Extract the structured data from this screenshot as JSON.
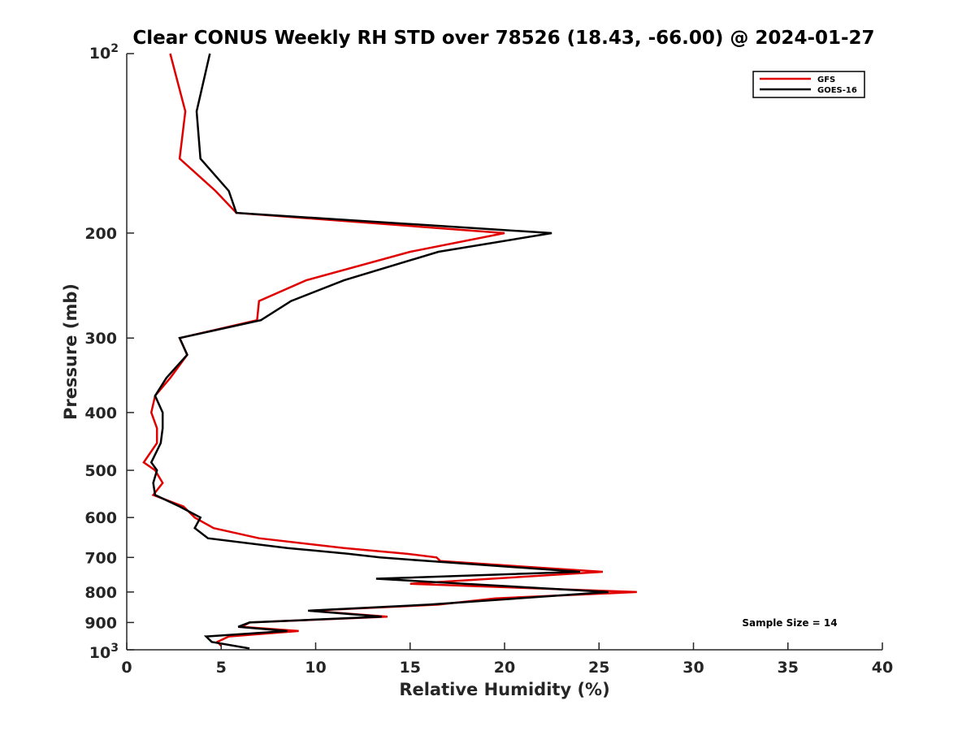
{
  "chart_data": {
    "type": "line",
    "title": "Clear CONUS Weekly RH STD over 78526 (18.43, -66.00) @ 2024-01-27",
    "xlabel": "Relative Humidity (%)",
    "ylabel": "Pressure (mb)",
    "xlim": [
      0,
      40
    ],
    "ylim": [
      100,
      1000
    ],
    "y_scale": "log",
    "y_reversed": true,
    "x_ticks": [
      0,
      5,
      10,
      15,
      20,
      25,
      30,
      35,
      40
    ],
    "x_tick_labels": [
      "0",
      "5",
      "10",
      "15",
      "20",
      "25",
      "30",
      "35",
      "40"
    ],
    "y_ticks": [
      200,
      300,
      400,
      500,
      600,
      700,
      800,
      900
    ],
    "y_tick_labels": [
      "200",
      "300",
      "400",
      "500",
      "600",
      "700",
      "800",
      "900"
    ],
    "y_edge_labels": {
      "top": {
        "base": "10",
        "exp": "2"
      },
      "bottom": {
        "base": "10",
        "exp": "3"
      }
    },
    "grid": false,
    "legend_position": "top-right",
    "annotation": "Sample Size = 14",
    "series": [
      {
        "name": "GFS",
        "color": "#e00000",
        "points": [
          [
            2.3,
            100
          ],
          [
            3.1,
            125
          ],
          [
            2.8,
            150
          ],
          [
            4.7,
            170
          ],
          [
            5.8,
            185
          ],
          [
            20.0,
            200
          ],
          [
            15.0,
            215
          ],
          [
            9.5,
            240
          ],
          [
            7.0,
            260
          ],
          [
            6.9,
            280
          ],
          [
            2.8,
            300
          ],
          [
            3.2,
            320
          ],
          [
            2.3,
            350
          ],
          [
            1.5,
            375
          ],
          [
            1.3,
            400
          ],
          [
            1.6,
            425
          ],
          [
            1.6,
            450
          ],
          [
            0.9,
            485
          ],
          [
            1.5,
            500
          ],
          [
            1.9,
            525
          ],
          [
            1.4,
            550
          ],
          [
            3.0,
            575
          ],
          [
            3.6,
            600
          ],
          [
            4.6,
            625
          ],
          [
            7.0,
            650
          ],
          [
            11.5,
            675
          ],
          [
            14.8,
            690
          ],
          [
            16.4,
            700
          ],
          [
            16.6,
            710
          ],
          [
            25.2,
            740
          ],
          [
            15.0,
            775
          ],
          [
            27.0,
            800
          ],
          [
            19.5,
            820
          ],
          [
            16.5,
            840
          ],
          [
            9.7,
            860
          ],
          [
            13.8,
            880
          ],
          [
            6.5,
            900
          ],
          [
            6.1,
            915
          ],
          [
            9.1,
            930
          ],
          [
            5.4,
            950
          ],
          [
            4.8,
            970
          ],
          [
            5.0,
            985
          ]
        ]
      },
      {
        "name": "GOES-16",
        "color": "#000000",
        "points": [
          [
            4.4,
            100
          ],
          [
            3.7,
            125
          ],
          [
            3.9,
            150
          ],
          [
            5.4,
            170
          ],
          [
            5.8,
            185
          ],
          [
            22.5,
            200
          ],
          [
            16.5,
            215
          ],
          [
            11.5,
            240
          ],
          [
            8.7,
            260
          ],
          [
            7.1,
            280
          ],
          [
            2.8,
            300
          ],
          [
            3.2,
            320
          ],
          [
            2.1,
            350
          ],
          [
            1.5,
            375
          ],
          [
            1.9,
            400
          ],
          [
            1.9,
            425
          ],
          [
            1.8,
            450
          ],
          [
            1.3,
            485
          ],
          [
            1.6,
            500
          ],
          [
            1.4,
            525
          ],
          [
            1.5,
            550
          ],
          [
            2.8,
            575
          ],
          [
            3.9,
            600
          ],
          [
            3.6,
            625
          ],
          [
            4.3,
            650
          ],
          [
            8.5,
            675
          ],
          [
            11.7,
            690
          ],
          [
            13.4,
            700
          ],
          [
            16.0,
            710
          ],
          [
            24.0,
            740
          ],
          [
            13.2,
            760
          ],
          [
            25.5,
            800
          ],
          [
            16.0,
            840
          ],
          [
            9.6,
            860
          ],
          [
            13.5,
            880
          ],
          [
            6.5,
            900
          ],
          [
            5.9,
            915
          ],
          [
            8.5,
            930
          ],
          [
            4.2,
            950
          ],
          [
            4.5,
            970
          ],
          [
            6.5,
            995
          ]
        ]
      }
    ]
  }
}
